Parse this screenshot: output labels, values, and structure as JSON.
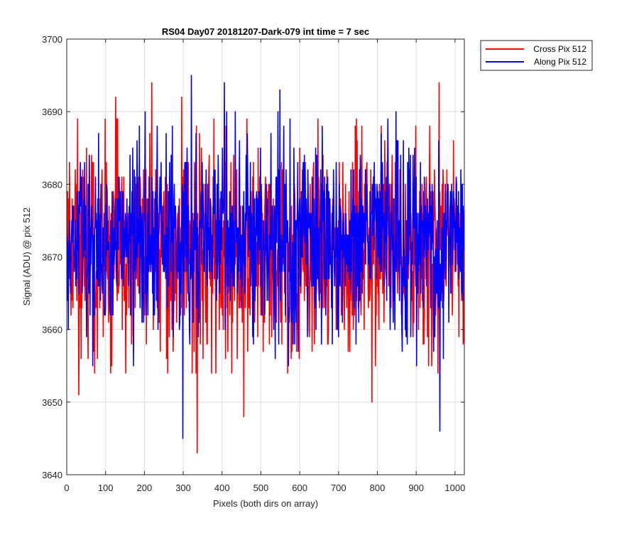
{
  "chart_data": {
    "type": "line",
    "title": "RS04 Day07 20181207-Dark-079 int time = 7 sec",
    "xlabel": "Pixels (both dirs on array)",
    "ylabel": "Signal (ADU) @ pix 512",
    "xlim": [
      0,
      1024
    ],
    "ylim": [
      3640,
      3700
    ],
    "xticks": [
      0,
      100,
      200,
      300,
      400,
      500,
      600,
      700,
      800,
      900,
      1000
    ],
    "yticks": [
      3640,
      3650,
      3660,
      3670,
      3680,
      3690,
      3700
    ],
    "grid": true,
    "legend_position": "outside-top-right",
    "series": [
      {
        "name": "Cross Pix 512",
        "color": "#ff0000",
        "mean": 3671,
        "noise_sd": 7,
        "n_points": 1024,
        "extremes": [
          {
            "x": 30,
            "y": 3651
          },
          {
            "x": 125,
            "y": 3692
          },
          {
            "x": 218,
            "y": 3694
          },
          {
            "x": 295,
            "y": 3692
          },
          {
            "x": 335,
            "y": 3643
          },
          {
            "x": 455,
            "y": 3648
          },
          {
            "x": 785,
            "y": 3650
          },
          {
            "x": 958,
            "y": 3694
          }
        ]
      },
      {
        "name": "Along Pix 512",
        "color": "#0000ff",
        "mean": 3672,
        "noise_sd": 6.5,
        "n_points": 1024,
        "extremes": [
          {
            "x": 298,
            "y": 3645
          },
          {
            "x": 320,
            "y": 3695
          },
          {
            "x": 405,
            "y": 3694
          },
          {
            "x": 548,
            "y": 3693
          },
          {
            "x": 960,
            "y": 3646
          }
        ]
      }
    ]
  }
}
